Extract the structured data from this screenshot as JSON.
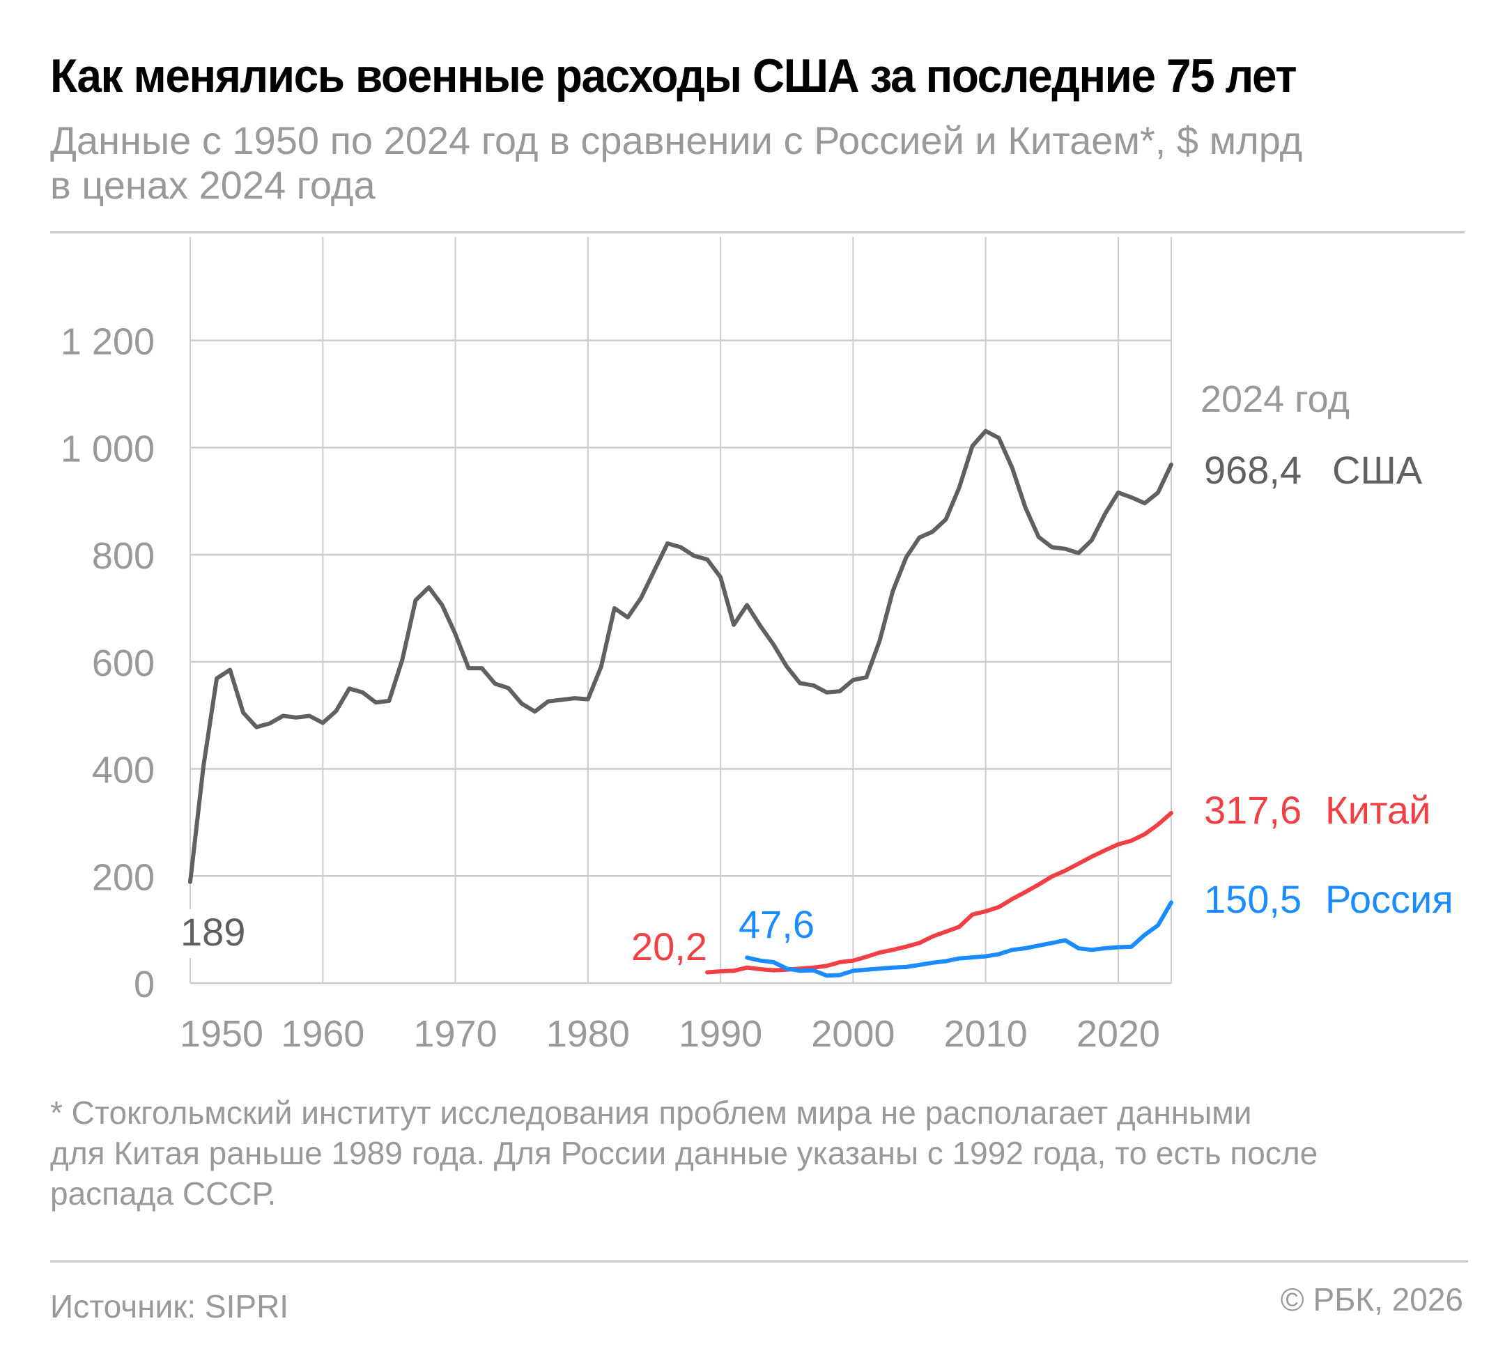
{
  "header": {
    "title": "Как менялись военные расходы США за последние 75 лет",
    "subtitle_line1": "Данные с 1950 по 2024 год в сравнении с Россией и Китаем*, $ млрд",
    "subtitle_line2": "в ценах 2024 года"
  },
  "chart_data": {
    "type": "line",
    "title": "Как менялись военные расходы США за последние 75 лет",
    "ylabel": "$ млрд в ценах 2024 года",
    "xlabel": "",
    "xlim": [
      1950,
      2024
    ],
    "ylim": [
      0,
      1300
    ],
    "grid": true,
    "x_ticks": [
      1950,
      1960,
      1970,
      1980,
      1990,
      2000,
      2010,
      2020
    ],
    "x_tick_labels": [
      "1950",
      "1960",
      "1970",
      "1980",
      "1990",
      "2000",
      "2010",
      "2020"
    ],
    "y_ticks": [
      0,
      200,
      400,
      600,
      800,
      1000,
      1200
    ],
    "y_tick_labels": [
      "0",
      "200",
      "400",
      "600",
      "800",
      "1 000",
      "1 200"
    ],
    "end_label_header": "2024 год",
    "series": [
      {
        "name": "США",
        "color": "#606060",
        "start_year": 1950,
        "start_label": "189",
        "end_value_label": "968,4",
        "values": [
          189,
          405,
          569,
          585,
          505,
          478,
          485,
          499,
          496,
          499,
          486,
          508,
          550,
          543,
          524,
          527,
          604,
          715,
          739,
          706,
          652,
          588,
          588,
          559,
          551,
          522,
          507,
          526,
          529,
          532,
          530,
          591,
          700,
          683,
          719,
          770,
          821,
          814,
          798,
          791,
          758,
          669,
          706,
          667,
          632,
          591,
          560,
          556,
          543,
          545,
          566,
          571,
          639,
          732,
          795,
          832,
          843,
          866,
          925,
          1003,
          1031,
          1018,
          962,
          888,
          833,
          814,
          811,
          803,
          827,
          876,
          916,
          907,
          896,
          916,
          968.4
        ]
      },
      {
        "name": "Китай",
        "color": "#f23f44",
        "start_year": 1989,
        "start_label": "20,2",
        "end_value_label": "317,6",
        "values": [
          20.2,
          22,
          23,
          29,
          26,
          24,
          25,
          27,
          29,
          32,
          39,
          42,
          49,
          57,
          62,
          68,
          75,
          87,
          96,
          105,
          128,
          134,
          142,
          157,
          170,
          184,
          199,
          210,
          223,
          236,
          248,
          259,
          266,
          278,
          296,
          317.6
        ]
      },
      {
        "name": "Россия",
        "color": "#1a8cff",
        "start_year": 1992,
        "start_label": "47,6",
        "end_value_label": "150,5",
        "values": [
          47.6,
          42,
          39,
          27,
          23,
          24,
          14,
          15,
          23,
          25,
          27,
          29,
          30,
          34,
          38,
          41,
          46,
          48,
          50,
          54,
          62,
          65,
          70,
          75,
          80,
          65,
          62,
          65,
          67,
          68,
          90,
          108,
          150.5
        ]
      }
    ]
  },
  "footnote": {
    "line1": "* Стокгольмский институт исследования проблем мира не располагает данными",
    "line2": "для Китая раньше 1989 года. Для России данные указаны с 1992 года, то есть после",
    "line3": "распада СССР."
  },
  "footer": {
    "source": "Источник: SIPRI",
    "copyright": "© РБК, 2026"
  }
}
